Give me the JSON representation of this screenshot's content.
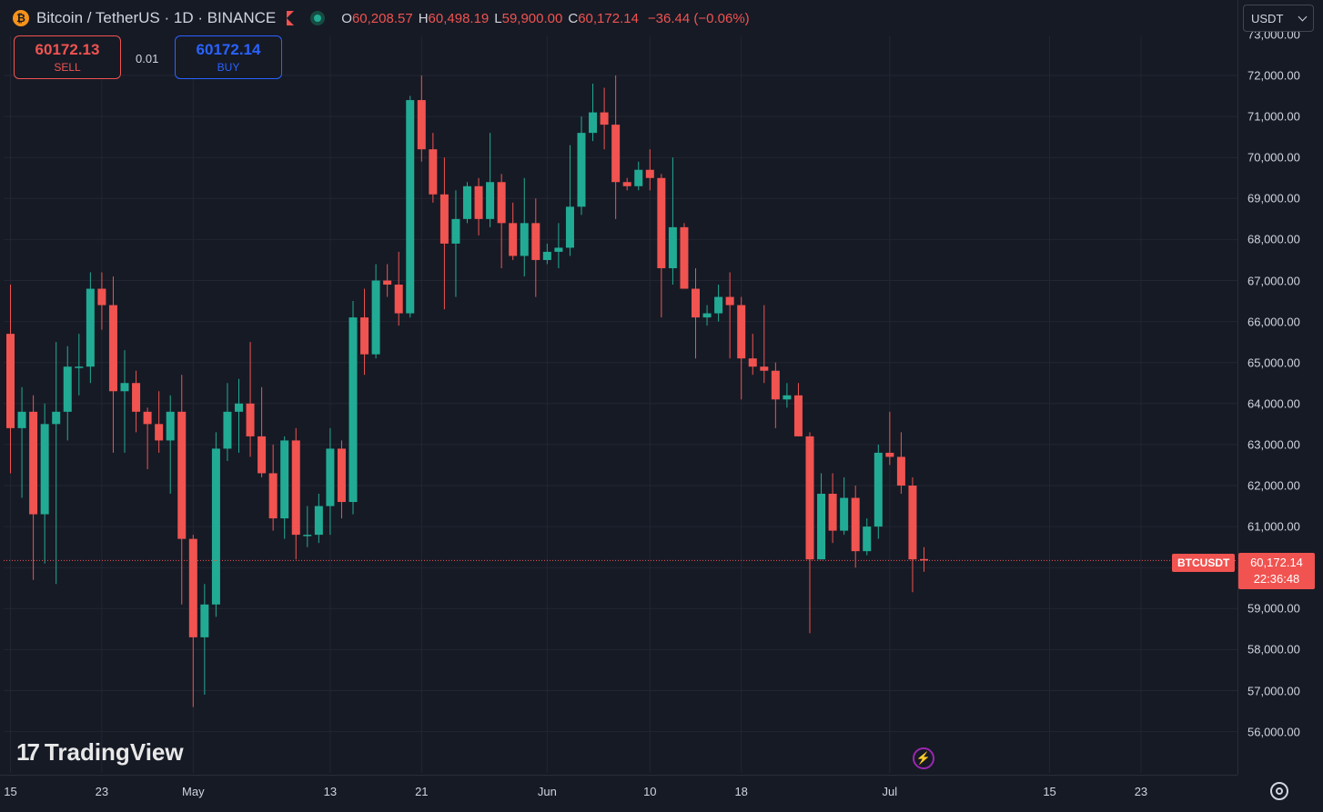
{
  "header": {
    "coin_symbol": "₿",
    "title": "Bitcoin / TetherUS · 1D · BINANCE",
    "ohlc": {
      "o_label": "O",
      "o": "60,208.57",
      "h_label": "H",
      "h": "60,498.19",
      "l_label": "L",
      "l": "59,900.00",
      "c_label": "C",
      "c": "60,172.14",
      "change": "−36.44 (−0.06%)"
    }
  },
  "trade": {
    "sell_price": "60172.13",
    "sell_label": "SELL",
    "spread": "0.01",
    "buy_price": "60172.14",
    "buy_label": "BUY"
  },
  "currency": {
    "selected": "USDT"
  },
  "last_price": {
    "symbol": "BTCUSDT",
    "price": "60,172.14",
    "countdown": "22:36:48",
    "value": 60172.14
  },
  "branding": {
    "logo_mark": "17",
    "logo_text": "TradingView"
  },
  "colors": {
    "up": "#22ab94",
    "down": "#f05350",
    "background": "#161a25",
    "grid": "#232632",
    "text": "#d1d4dc",
    "buy": "#2962ff",
    "alert": "#9c27b0"
  },
  "chart_data": {
    "type": "candlestick",
    "ylim": [
      55400,
      73400
    ],
    "ytick_values": [
      56000,
      57000,
      58000,
      59000,
      60000,
      61000,
      62000,
      63000,
      64000,
      65000,
      66000,
      67000,
      68000,
      69000,
      70000,
      71000,
      72000,
      73000
    ],
    "ytick_labels": [
      "56,000.00",
      "57,000.00",
      "58,000.00",
      "59,000.00",
      "60,000.00",
      "61,000.00",
      "62,000.00",
      "63,000.00",
      "64,000.00",
      "65,000.00",
      "66,000.00",
      "67,000.00",
      "68,000.00",
      "69,000.00",
      "70,000.00",
      "71,000.00",
      "72,000.00",
      "73,000.00"
    ],
    "xticks": [
      {
        "label": "15",
        "day": 0
      },
      {
        "label": "23",
        "day": 8
      },
      {
        "label": "May",
        "day": 16
      },
      {
        "label": "13",
        "day": 28
      },
      {
        "label": "21",
        "day": 36
      },
      {
        "label": "Jun",
        "day": 47
      },
      {
        "label": "10",
        "day": 56
      },
      {
        "label": "18",
        "day": 64
      },
      {
        "label": "Jul",
        "day": 77
      },
      {
        "label": "15",
        "day": 91
      },
      {
        "label": "23",
        "day": 99
      }
    ],
    "start_date": "2024-04-15",
    "candles": [
      {
        "d": "2024-04-15",
        "o": 65700,
        "h": 66900,
        "l": 62300,
        "c": 63400
      },
      {
        "d": "2024-04-16",
        "o": 63400,
        "h": 64400,
        "l": 61700,
        "c": 63800
      },
      {
        "d": "2024-04-17",
        "o": 63800,
        "h": 64200,
        "l": 59700,
        "c": 61300
      },
      {
        "d": "2024-04-18",
        "o": 61300,
        "h": 64000,
        "l": 60100,
        "c": 63500
      },
      {
        "d": "2024-04-19",
        "o": 63500,
        "h": 65500,
        "l": 59600,
        "c": 63800
      },
      {
        "d": "2024-04-20",
        "o": 63800,
        "h": 65400,
        "l": 63100,
        "c": 64900
      },
      {
        "d": "2024-04-21",
        "o": 64900,
        "h": 65700,
        "l": 64200,
        "c": 64900
      },
      {
        "d": "2024-04-22",
        "o": 64900,
        "h": 67200,
        "l": 64500,
        "c": 66800
      },
      {
        "d": "2024-04-23",
        "o": 66800,
        "h": 67200,
        "l": 65800,
        "c": 66400
      },
      {
        "d": "2024-04-24",
        "o": 66400,
        "h": 67100,
        "l": 62800,
        "c": 64300
      },
      {
        "d": "2024-04-25",
        "o": 64300,
        "h": 65300,
        "l": 62800,
        "c": 64500
      },
      {
        "d": "2024-04-26",
        "o": 64500,
        "h": 64800,
        "l": 63300,
        "c": 63800
      },
      {
        "d": "2024-04-27",
        "o": 63800,
        "h": 63900,
        "l": 62400,
        "c": 63500
      },
      {
        "d": "2024-04-28",
        "o": 63500,
        "h": 64300,
        "l": 62800,
        "c": 63100
      },
      {
        "d": "2024-04-29",
        "o": 63100,
        "h": 64200,
        "l": 61800,
        "c": 63800
      },
      {
        "d": "2024-04-30",
        "o": 63800,
        "h": 64700,
        "l": 59100,
        "c": 60700
      },
      {
        "d": "2024-05-01",
        "o": 60700,
        "h": 60800,
        "l": 56600,
        "c": 58300
      },
      {
        "d": "2024-05-02",
        "o": 58300,
        "h": 59600,
        "l": 56900,
        "c": 59100
      },
      {
        "d": "2024-05-03",
        "o": 59100,
        "h": 63300,
        "l": 58800,
        "c": 62900
      },
      {
        "d": "2024-05-04",
        "o": 62900,
        "h": 64500,
        "l": 62600,
        "c": 63800
      },
      {
        "d": "2024-05-05",
        "o": 63800,
        "h": 64600,
        "l": 62800,
        "c": 64000
      },
      {
        "d": "2024-05-06",
        "o": 64000,
        "h": 65500,
        "l": 62700,
        "c": 63200
      },
      {
        "d": "2024-05-07",
        "o": 63200,
        "h": 64400,
        "l": 62200,
        "c": 62300
      },
      {
        "d": "2024-05-08",
        "o": 62300,
        "h": 63000,
        "l": 60900,
        "c": 61200
      },
      {
        "d": "2024-05-09",
        "o": 61200,
        "h": 63200,
        "l": 60700,
        "c": 63100
      },
      {
        "d": "2024-05-10",
        "o": 63100,
        "h": 63400,
        "l": 60200,
        "c": 60800
      },
      {
        "d": "2024-05-11",
        "o": 60800,
        "h": 61500,
        "l": 60500,
        "c": 60800
      },
      {
        "d": "2024-05-12",
        "o": 60800,
        "h": 61800,
        "l": 60600,
        "c": 61500
      },
      {
        "d": "2024-05-13",
        "o": 61500,
        "h": 63400,
        "l": 60800,
        "c": 62900
      },
      {
        "d": "2024-05-14",
        "o": 62900,
        "h": 63100,
        "l": 61200,
        "c": 61600
      },
      {
        "d": "2024-05-15",
        "o": 61600,
        "h": 66500,
        "l": 61300,
        "c": 66100
      },
      {
        "d": "2024-05-16",
        "o": 66100,
        "h": 66800,
        "l": 64700,
        "c": 65200
      },
      {
        "d": "2024-05-17",
        "o": 65200,
        "h": 67400,
        "l": 65100,
        "c": 67000
      },
      {
        "d": "2024-05-18",
        "o": 67000,
        "h": 67400,
        "l": 66600,
        "c": 66900
      },
      {
        "d": "2024-05-19",
        "o": 66900,
        "h": 67700,
        "l": 65900,
        "c": 66200
      },
      {
        "d": "2024-05-20",
        "o": 66200,
        "h": 71500,
        "l": 66100,
        "c": 71400
      },
      {
        "d": "2024-05-21",
        "o": 71400,
        "h": 72000,
        "l": 69900,
        "c": 70200
      },
      {
        "d": "2024-05-22",
        "o": 70200,
        "h": 70600,
        "l": 68900,
        "c": 69100
      },
      {
        "d": "2024-05-23",
        "o": 69100,
        "h": 70000,
        "l": 66300,
        "c": 67900
      },
      {
        "d": "2024-05-24",
        "o": 67900,
        "h": 69200,
        "l": 66600,
        "c": 68500
      },
      {
        "d": "2024-05-25",
        "o": 68500,
        "h": 69400,
        "l": 68400,
        "c": 69300
      },
      {
        "d": "2024-05-26",
        "o": 69300,
        "h": 69500,
        "l": 68100,
        "c": 68500
      },
      {
        "d": "2024-05-27",
        "o": 68500,
        "h": 70600,
        "l": 68300,
        "c": 69400
      },
      {
        "d": "2024-05-28",
        "o": 69400,
        "h": 69600,
        "l": 67300,
        "c": 68400
      },
      {
        "d": "2024-05-29",
        "o": 68400,
        "h": 68900,
        "l": 67500,
        "c": 67600
      },
      {
        "d": "2024-05-30",
        "o": 67600,
        "h": 69500,
        "l": 67100,
        "c": 68400
      },
      {
        "d": "2024-05-31",
        "o": 68400,
        "h": 69000,
        "l": 66600,
        "c": 67500
      },
      {
        "d": "2024-06-01",
        "o": 67500,
        "h": 67900,
        "l": 67400,
        "c": 67700
      },
      {
        "d": "2024-06-02",
        "o": 67700,
        "h": 68400,
        "l": 67300,
        "c": 67800
      },
      {
        "d": "2024-06-03",
        "o": 67800,
        "h": 70300,
        "l": 67600,
        "c": 68800
      },
      {
        "d": "2024-06-04",
        "o": 68800,
        "h": 71000,
        "l": 68600,
        "c": 70600
      },
      {
        "d": "2024-06-05",
        "o": 70600,
        "h": 71800,
        "l": 70400,
        "c": 71100
      },
      {
        "d": "2024-06-06",
        "o": 71100,
        "h": 71700,
        "l": 70200,
        "c": 70800
      },
      {
        "d": "2024-06-07",
        "o": 70800,
        "h": 72000,
        "l": 68500,
        "c": 69400
      },
      {
        "d": "2024-06-08",
        "o": 69400,
        "h": 69500,
        "l": 69200,
        "c": 69300
      },
      {
        "d": "2024-06-09",
        "o": 69300,
        "h": 69900,
        "l": 69200,
        "c": 69700
      },
      {
        "d": "2024-06-10",
        "o": 69700,
        "h": 70200,
        "l": 69200,
        "c": 69500
      },
      {
        "d": "2024-06-11",
        "o": 69500,
        "h": 69600,
        "l": 66100,
        "c": 67300
      },
      {
        "d": "2024-06-12",
        "o": 67300,
        "h": 70000,
        "l": 66900,
        "c": 68300
      },
      {
        "d": "2024-06-13",
        "o": 68300,
        "h": 68400,
        "l": 66800,
        "c": 66800
      },
      {
        "d": "2024-06-14",
        "o": 66800,
        "h": 67300,
        "l": 65100,
        "c": 66100
      },
      {
        "d": "2024-06-15",
        "o": 66100,
        "h": 66400,
        "l": 65900,
        "c": 66200
      },
      {
        "d": "2024-06-16",
        "o": 66200,
        "h": 66900,
        "l": 66000,
        "c": 66600
      },
      {
        "d": "2024-06-17",
        "o": 66600,
        "h": 67200,
        "l": 65100,
        "c": 66400
      },
      {
        "d": "2024-06-18",
        "o": 66400,
        "h": 66600,
        "l": 64100,
        "c": 65100
      },
      {
        "d": "2024-06-19",
        "o": 65100,
        "h": 65700,
        "l": 64700,
        "c": 64900
      },
      {
        "d": "2024-06-20",
        "o": 64900,
        "h": 66400,
        "l": 64500,
        "c": 64800
      },
      {
        "d": "2024-06-21",
        "o": 64800,
        "h": 65000,
        "l": 63400,
        "c": 64100
      },
      {
        "d": "2024-06-22",
        "o": 64100,
        "h": 64500,
        "l": 63900,
        "c": 64200
      },
      {
        "d": "2024-06-23",
        "o": 64200,
        "h": 64500,
        "l": 63200,
        "c": 63200
      },
      {
        "d": "2024-06-24",
        "o": 63200,
        "h": 63300,
        "l": 58400,
        "c": 60200
      },
      {
        "d": "2024-06-25",
        "o": 60200,
        "h": 62300,
        "l": 60200,
        "c": 61800
      },
      {
        "d": "2024-06-26",
        "o": 61800,
        "h": 62300,
        "l": 60600,
        "c": 60900
      },
      {
        "d": "2024-06-27",
        "o": 60900,
        "h": 62200,
        "l": 60800,
        "c": 61700
      },
      {
        "d": "2024-06-28",
        "o": 61700,
        "h": 62000,
        "l": 60000,
        "c": 60400
      },
      {
        "d": "2024-06-29",
        "o": 60400,
        "h": 61200,
        "l": 60300,
        "c": 61000
      },
      {
        "d": "2024-06-30",
        "o": 61000,
        "h": 63000,
        "l": 60700,
        "c": 62800
      },
      {
        "d": "2024-07-01",
        "o": 62800,
        "h": 63800,
        "l": 62500,
        "c": 62700
      },
      {
        "d": "2024-07-02",
        "o": 62700,
        "h": 63300,
        "l": 61800,
        "c": 62000
      },
      {
        "d": "2024-07-03",
        "o": 62000,
        "h": 62200,
        "l": 59400,
        "c": 60200
      },
      {
        "d": "2024-07-04",
        "o": 60208.57,
        "h": 60498.19,
        "l": 59900,
        "c": 60172.14
      }
    ]
  }
}
